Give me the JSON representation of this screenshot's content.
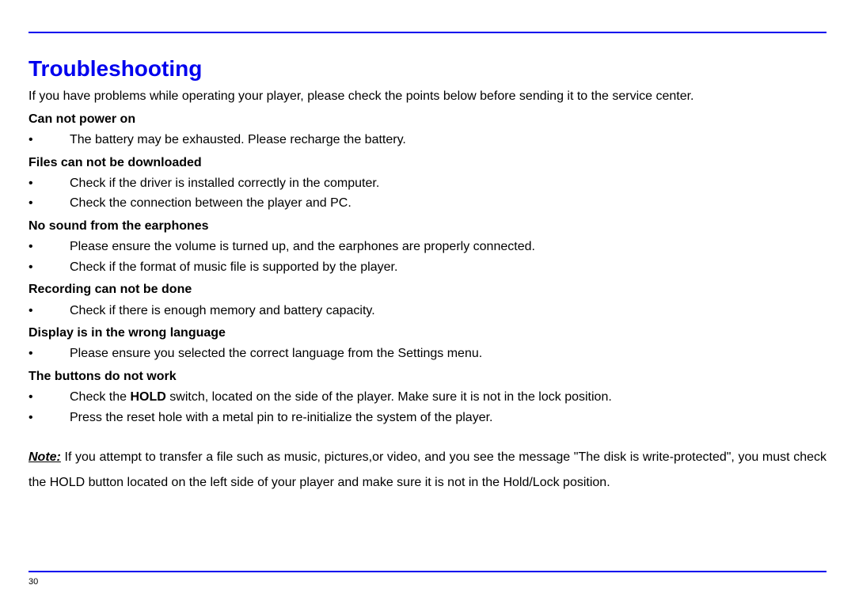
{
  "colors": {
    "rule": "#0000ee",
    "title": "#0000ee",
    "text": "#000000",
    "background": "#ffffff"
  },
  "typography": {
    "title_fontsize": 28,
    "body_fontsize": 16,
    "page_num_fontsize": 11,
    "font_family": "Arial"
  },
  "title": "Troubleshooting",
  "intro": "If you have problems while operating your player, please check the points below before sending it to the service center.",
  "sections": [
    {
      "heading": "Can not power on",
      "items": [
        "The battery may be exhausted. Please recharge the battery."
      ]
    },
    {
      "heading": "Files can not be downloaded",
      "items": [
        "Check if the driver is installed correctly in the computer.",
        "Check the connection between the player and PC."
      ]
    },
    {
      "heading": "No sound from the earphones",
      "items": [
        "Please ensure the volume is turned up, and the earphones are properly connected.",
        "Check if the format of music file is supported by the player."
      ]
    },
    {
      "heading": "Recording can not be done",
      "items": [
        "Check if there is enough memory and battery capacity."
      ]
    },
    {
      "heading": "Display is in the wrong language",
      "items": [
        "Please ensure you selected the correct language from the Settings menu."
      ]
    },
    {
      "heading": "The buttons do not work",
      "items": [
        {
          "pre": "Check the ",
          "bold": "HOLD",
          "post": " switch, located on the side of the player. Make sure it is not in the lock position."
        },
        "Press the reset hole with a metal pin to re-initialize the system of the player."
      ]
    }
  ],
  "note": {
    "label": "Note:",
    "text": " If you attempt to transfer a file such as music, pictures,or video, and you see the message \"The disk is write-protected\", you must check the HOLD button located on the left side of your player and make sure it is not in the Hold/Lock position."
  },
  "page_number": "30"
}
